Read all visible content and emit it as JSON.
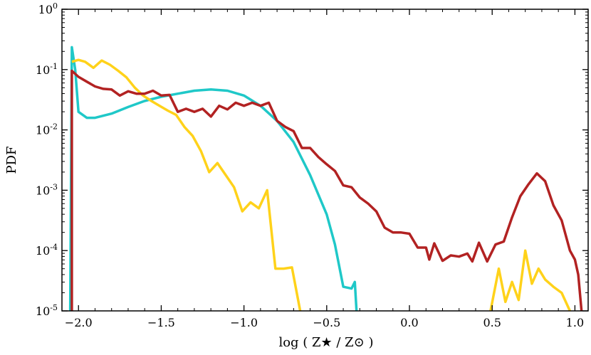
{
  "chart_data": {
    "type": "line",
    "title": "",
    "xlabel": "log ( Z★ / Z⊙ )",
    "ylabel": "PDF",
    "xlim": [
      -2.1,
      1.08
    ],
    "ylim_log10": [
      -5,
      0
    ],
    "y_scale": "log",
    "grid": false,
    "legend": "none",
    "x_ticks": [
      {
        "value": -2.0,
        "label": "−2.0"
      },
      {
        "value": -1.5,
        "label": "−1.5"
      },
      {
        "value": -1.0,
        "label": "−1.0"
      },
      {
        "value": -0.5,
        "label": "−0.5"
      },
      {
        "value": 0.0,
        "label": "0.0"
      },
      {
        "value": 0.5,
        "label": "0.5"
      },
      {
        "value": 1.0,
        "label": "1.0"
      }
    ],
    "y_ticks": [
      {
        "exp": 0,
        "base": "10",
        "sup": "0"
      },
      {
        "exp": -1,
        "base": "10",
        "sup": "-1"
      },
      {
        "exp": -2,
        "base": "10",
        "sup": "-2"
      },
      {
        "exp": -3,
        "base": "10",
        "sup": "-3"
      },
      {
        "exp": -4,
        "base": "10",
        "sup": "-4"
      },
      {
        "exp": -5,
        "base": "10",
        "sup": "-5"
      }
    ],
    "series": [
      {
        "name": "cyan",
        "color": "#1fc8c8",
        "points": [
          [
            -2.05,
            -5.0
          ],
          [
            -2.04,
            -0.63
          ],
          [
            -2.02,
            -1.0
          ],
          [
            -2.0,
            -1.7
          ],
          [
            -1.95,
            -1.8
          ],
          [
            -1.9,
            -1.8
          ],
          [
            -1.8,
            -1.73
          ],
          [
            -1.7,
            -1.62
          ],
          [
            -1.6,
            -1.52
          ],
          [
            -1.5,
            -1.45
          ],
          [
            -1.4,
            -1.4
          ],
          [
            -1.3,
            -1.35
          ],
          [
            -1.2,
            -1.33
          ],
          [
            -1.1,
            -1.35
          ],
          [
            -1.0,
            -1.43
          ],
          [
            -0.9,
            -1.6
          ],
          [
            -0.8,
            -1.85
          ],
          [
            -0.7,
            -2.2
          ],
          [
            -0.6,
            -2.75
          ],
          [
            -0.5,
            -3.4
          ],
          [
            -0.45,
            -3.9
          ],
          [
            -0.4,
            -4.6
          ],
          [
            -0.35,
            -4.63
          ],
          [
            -0.33,
            -4.52
          ],
          [
            -0.32,
            -5.0
          ]
        ]
      },
      {
        "name": "yellow",
        "color": "#ffd21a",
        "points": [
          [
            -2.04,
            -0.87
          ],
          [
            -2.0,
            -0.84
          ],
          [
            -1.96,
            -0.87
          ],
          [
            -1.91,
            -0.97
          ],
          [
            -1.86,
            -0.85
          ],
          [
            -1.81,
            -0.92
          ],
          [
            -1.76,
            -1.02
          ],
          [
            -1.71,
            -1.13
          ],
          [
            -1.66,
            -1.3
          ],
          [
            -1.61,
            -1.43
          ],
          [
            -1.56,
            -1.52
          ],
          [
            -1.51,
            -1.6
          ],
          [
            -1.46,
            -1.68
          ],
          [
            -1.41,
            -1.75
          ],
          [
            -1.36,
            -1.95
          ],
          [
            -1.31,
            -2.1
          ],
          [
            -1.26,
            -2.35
          ],
          [
            -1.21,
            -2.7
          ],
          [
            -1.16,
            -2.55
          ],
          [
            -1.11,
            -2.75
          ],
          [
            -1.06,
            -2.95
          ],
          [
            -1.01,
            -3.35
          ],
          [
            -0.96,
            -3.2
          ],
          [
            -0.91,
            -3.3
          ],
          [
            -0.86,
            -3.0
          ],
          [
            -0.81,
            -4.3
          ],
          [
            -0.76,
            -4.3
          ],
          [
            -0.71,
            -4.28
          ],
          [
            -0.66,
            -5.0
          ]
        ]
      },
      {
        "name": "yellow-tail",
        "color": "#ffd21a",
        "points": [
          [
            0.49,
            -5.0
          ],
          [
            0.54,
            -4.3
          ],
          [
            0.58,
            -4.85
          ],
          [
            0.62,
            -4.52
          ],
          [
            0.66,
            -4.82
          ],
          [
            0.7,
            -4.0
          ],
          [
            0.74,
            -4.55
          ],
          [
            0.78,
            -4.3
          ],
          [
            0.82,
            -4.48
          ],
          [
            0.87,
            -4.6
          ],
          [
            0.92,
            -4.7
          ],
          [
            0.97,
            -5.0
          ]
        ]
      },
      {
        "name": "red",
        "color": "#b22222",
        "points": [
          [
            -2.04,
            -5.0
          ],
          [
            -2.04,
            -1.02
          ],
          [
            -2.0,
            -1.12
          ],
          [
            -1.95,
            -1.2
          ],
          [
            -1.9,
            -1.28
          ],
          [
            -1.85,
            -1.32
          ],
          [
            -1.8,
            -1.33
          ],
          [
            -1.75,
            -1.43
          ],
          [
            -1.7,
            -1.36
          ],
          [
            -1.65,
            -1.4
          ],
          [
            -1.6,
            -1.4
          ],
          [
            -1.55,
            -1.35
          ],
          [
            -1.5,
            -1.43
          ],
          [
            -1.45,
            -1.42
          ],
          [
            -1.4,
            -1.7
          ],
          [
            -1.35,
            -1.65
          ],
          [
            -1.3,
            -1.7
          ],
          [
            -1.25,
            -1.65
          ],
          [
            -1.2,
            -1.78
          ],
          [
            -1.15,
            -1.6
          ],
          [
            -1.1,
            -1.66
          ],
          [
            -1.05,
            -1.55
          ],
          [
            -1.0,
            -1.6
          ],
          [
            -0.95,
            -1.55
          ],
          [
            -0.9,
            -1.6
          ],
          [
            -0.85,
            -1.55
          ],
          [
            -0.8,
            -1.85
          ],
          [
            -0.75,
            -1.95
          ],
          [
            -0.7,
            -2.02
          ],
          [
            -0.65,
            -2.3
          ],
          [
            -0.6,
            -2.3
          ],
          [
            -0.55,
            -2.45
          ],
          [
            -0.5,
            -2.57
          ],
          [
            -0.45,
            -2.68
          ],
          [
            -0.4,
            -2.92
          ],
          [
            -0.35,
            -2.95
          ],
          [
            -0.3,
            -3.12
          ],
          [
            -0.25,
            -3.22
          ],
          [
            -0.2,
            -3.35
          ],
          [
            -0.15,
            -3.62
          ],
          [
            -0.1,
            -3.7
          ],
          [
            -0.05,
            -3.7
          ],
          [
            0.0,
            -3.72
          ],
          [
            0.05,
            -3.95
          ],
          [
            0.1,
            -3.95
          ],
          [
            0.12,
            -4.15
          ],
          [
            0.15,
            -3.88
          ],
          [
            0.2,
            -4.17
          ],
          [
            0.25,
            -4.08
          ],
          [
            0.3,
            -4.1
          ],
          [
            0.35,
            -4.05
          ],
          [
            0.38,
            -4.18
          ],
          [
            0.42,
            -3.87
          ],
          [
            0.47,
            -4.18
          ],
          [
            0.52,
            -3.9
          ],
          [
            0.57,
            -3.85
          ],
          [
            0.62,
            -3.45
          ],
          [
            0.67,
            -3.1
          ],
          [
            0.72,
            -2.9
          ],
          [
            0.77,
            -2.72
          ],
          [
            0.82,
            -2.85
          ],
          [
            0.87,
            -3.25
          ],
          [
            0.92,
            -3.5
          ],
          [
            0.97,
            -4.0
          ],
          [
            1.0,
            -4.15
          ],
          [
            1.02,
            -4.4
          ],
          [
            1.04,
            -5.0
          ]
        ]
      }
    ]
  }
}
